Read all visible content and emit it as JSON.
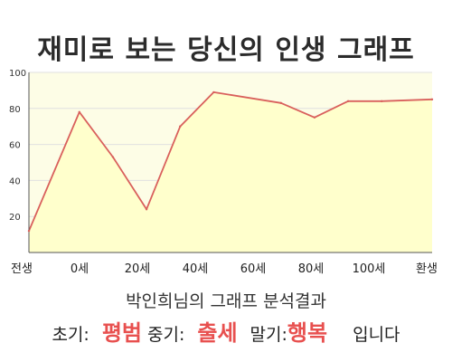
{
  "title": "재미로 보는 당신의 인생 그래프",
  "chart_data": {
    "type": "area",
    "x_tick_labels": [
      "전생",
      "0세",
      "20세",
      "40세",
      "60세",
      "80세",
      "100세",
      "환생"
    ],
    "x": [
      -15,
      0,
      10,
      20,
      30,
      40,
      60,
      70,
      80,
      90,
      105
    ],
    "values": [
      12,
      78,
      53,
      24,
      70,
      89,
      83,
      75,
      84,
      84,
      85
    ],
    "ylim": [
      0,
      100
    ],
    "y_ticks": [
      20,
      40,
      60,
      80,
      100
    ],
    "grid": true,
    "line_color": "#d9605c",
    "fill_color": "#ffffcc",
    "plot_background": "#fdfde6",
    "grid_color": "#e0e0e0"
  },
  "subtitle": "박인희님의 그래프 분석결과",
  "verdict": {
    "early_label": "초기:",
    "early_value": "평범",
    "mid_label": "중기:",
    "mid_value": "출세",
    "late_label": "말기:",
    "late_value": "행복",
    "ending": "입니다"
  },
  "accent_color": "#e8504f"
}
